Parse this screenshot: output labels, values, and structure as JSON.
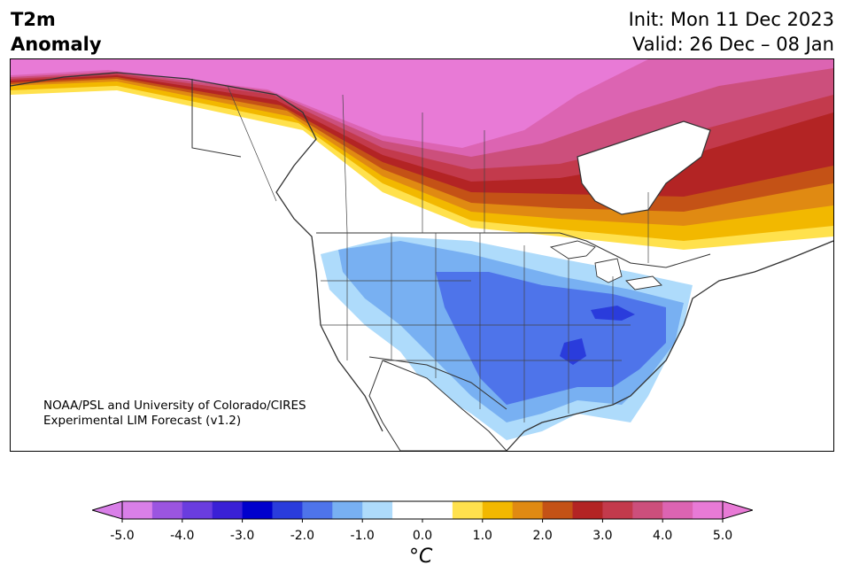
{
  "header": {
    "title_line1": "T2m",
    "title_line2": "Anomaly",
    "init_text": "Init: Mon 11 Dec 2023",
    "valid_text": "Valid: 26 Dec – 08 Jan"
  },
  "map": {
    "region": "North America",
    "projection": "Lambert conformal",
    "credit_line1": "NOAA/PSL and University of Colorado/CIRES",
    "credit_line2": "Experimental LIM Forecast (v1.2)"
  },
  "colorbar": {
    "unit": "°C",
    "extend": "both",
    "tick_values": [
      -5.0,
      -4.0,
      -3.0,
      -2.0,
      -1.0,
      0.0,
      1.0,
      2.0,
      3.0,
      4.0,
      5.0
    ],
    "tick_labels": [
      "-5.0",
      "-4.0",
      "-3.0",
      "-2.0",
      "-1.0",
      "0.0",
      "1.0",
      "2.0",
      "3.0",
      "4.0",
      "5.0"
    ],
    "colors": [
      "#d97fe8",
      "#9b55e0",
      "#6a3ddf",
      "#3a20d6",
      "#0000cd",
      "#2a3cdc",
      "#4e74ea",
      "#78b0f2",
      "#aedbfb",
      "#ffffff",
      "#ffffff",
      "#ffe14d",
      "#f2b800",
      "#e08a12",
      "#c45216",
      "#b32424",
      "#c33a4c",
      "#cc4f7c",
      "#dc64b2",
      "#e87ad6"
    ],
    "level_step": 0.5,
    "min": -5.0,
    "max": 5.0
  }
}
